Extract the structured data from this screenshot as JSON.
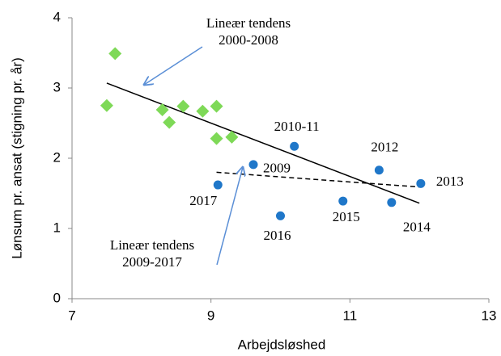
{
  "chart_data": {
    "type": "scatter",
    "x_label": "Arbejdsløshed",
    "y_label": "Lønsum pr. ansat (stigning pr. år)",
    "xlim": [
      7,
      13
    ],
    "xticks": [
      7,
      9,
      11,
      13
    ],
    "ylim": [
      0,
      4
    ],
    "yticks": [
      0,
      1,
      2,
      3,
      4
    ],
    "series": [
      {
        "color": "#7ed957",
        "marker": "diamond",
        "x": [
          7.5,
          7.62,
          8.3,
          8.4,
          8.6,
          8.88,
          9.08,
          9.08,
          9.3
        ],
        "values": [
          2.75,
          3.49,
          2.69,
          2.51,
          2.74,
          2.67,
          2.74,
          2.28,
          2.3
        ]
      },
      {
        "color": "#1f77c9",
        "marker": "circle",
        "x": [
          9.1,
          9.61,
          10.2,
          10.0,
          10.9,
          11.42,
          11.6,
          12.02
        ],
        "values": [
          1.62,
          1.91,
          2.17,
          1.18,
          1.39,
          1.83,
          1.37,
          1.64
        ],
        "labels": [
          "2017",
          "2009",
          "2010-11",
          "2016",
          "2015",
          "2012",
          "2014",
          "2013"
        ]
      }
    ],
    "trend_lines": [
      {
        "x": [
          7.5,
          12
        ],
        "values": [
          3.07,
          1.36
        ],
        "dashed": false,
        "label": [
          "Lineær tendens",
          "2000-2008"
        ]
      },
      {
        "x": [
          9.08,
          12
        ],
        "values": [
          1.8,
          1.59
        ],
        "dashed": true,
        "label": [
          "Lineær tendens",
          "2009-2017"
        ]
      }
    ]
  }
}
